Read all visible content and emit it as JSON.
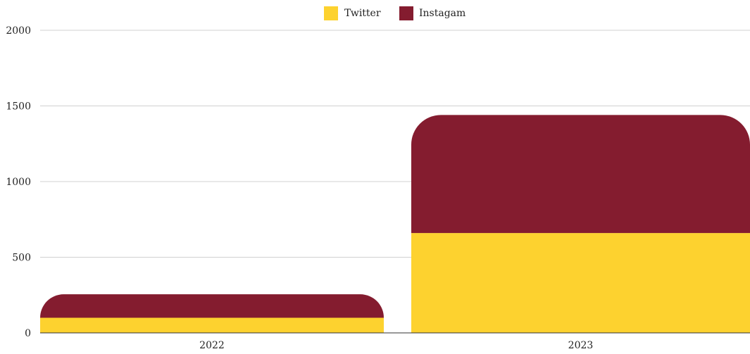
{
  "chart_data": {
    "type": "bar",
    "stacked": true,
    "categories": [
      "2022",
      "2023"
    ],
    "series": [
      {
        "name": "Twitter",
        "values": [
          100,
          660
        ],
        "color": "#FDD22F"
      },
      {
        "name": "Instagam",
        "values": [
          155,
          780
        ],
        "color": "#841C2F"
      }
    ],
    "title": "",
    "xlabel": "",
    "ylabel": "",
    "ylim": [
      0,
      2000
    ],
    "yticks": [
      0,
      500,
      1000,
      1500,
      2000
    ],
    "grid": true,
    "legend_position": "top-center"
  }
}
